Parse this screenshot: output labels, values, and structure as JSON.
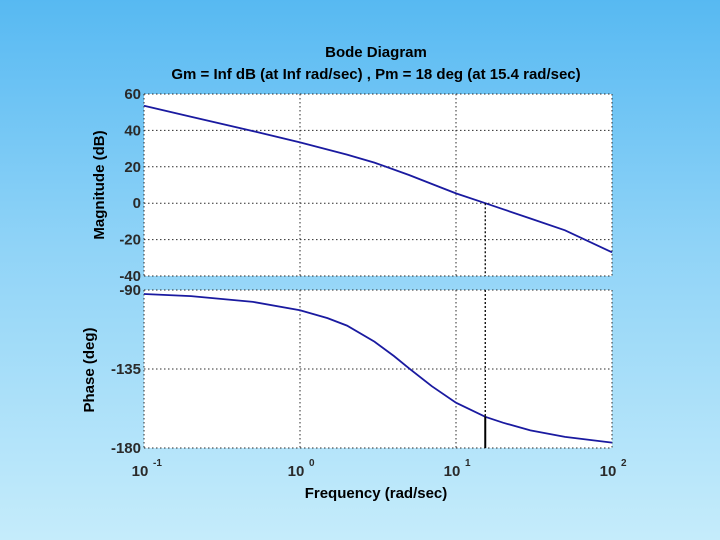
{
  "chart_data": {
    "type": "line",
    "title": "Bode Diagram",
    "subtitle": "Gm = Inf dB (at Inf rad/sec) ,  Pm = 18 deg (at 15.4 rad/sec)",
    "xlabel": "Frequency  (rad/sec)",
    "xscale": "log",
    "xlim": [
      0.1,
      100
    ],
    "x_ticks": [
      {
        "base": "10",
        "exp": "-1"
      },
      {
        "base": "10",
        "exp": "0"
      },
      {
        "base": "10",
        "exp": "1"
      },
      {
        "base": "10",
        "exp": "2"
      }
    ],
    "grid": true,
    "crossover_frequency": 15.4,
    "phase_margin_deg": 18,
    "panels": [
      {
        "name": "magnitude",
        "ylabel": "Magnitude (dB)",
        "ylim": [
          -40,
          60
        ],
        "y_ticks": [
          "60",
          "40",
          "20",
          "0",
          "-20",
          "-40"
        ],
        "series": [
          {
            "name": "Magnitude",
            "x": [
              0.1,
              0.2,
              0.5,
              1,
              2,
              3,
              5,
              8,
              10,
              15.4,
              20,
              30,
              50,
              100
            ],
            "values": [
              53.5,
              47.5,
              39.6,
              33.4,
              26.7,
              22.3,
              15.5,
              8.6,
              5.4,
              0,
              -3.3,
              -8.4,
              -14.9,
              -27.0
            ]
          }
        ]
      },
      {
        "name": "phase",
        "ylabel": "Phase (deg)",
        "ylim": [
          -180,
          -90
        ],
        "y_ticks": [
          "-90",
          "-135",
          "-180"
        ],
        "series": [
          {
            "name": "Phase",
            "x": [
              0.1,
              0.2,
              0.5,
              1,
              1.5,
              2,
              3,
              4,
              5,
              7,
              10,
              15.4,
              20,
              30,
              50,
              100
            ],
            "values": [
              -92.3,
              -93.5,
              -96.8,
              -101.5,
              -106.0,
              -110.3,
              -119.4,
              -127.6,
              -134.6,
              -144.8,
              -154.2,
              -162.2,
              -165.6,
              -170.0,
              -173.7,
              -176.9
            ]
          }
        ]
      }
    ]
  },
  "colors": {
    "curve": "#1a1aa0",
    "grid": "#2b2b2b",
    "plot_bg": "#ffffff",
    "marker": "#000000"
  }
}
